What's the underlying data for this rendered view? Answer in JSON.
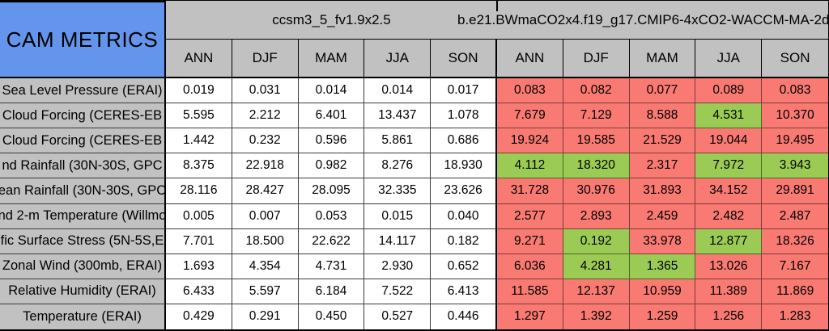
{
  "chart_data": {
    "type": "table",
    "title": "CAM METRICS",
    "models": [
      "ccsm3_5_fv1.9x2.5",
      "b.e21.BWmaCO2x4.f19_g17.CMIP6-4xCO2-WACCM-MA-2d"
    ],
    "seasons": [
      "ANN",
      "DJF",
      "MAM",
      "JJA",
      "SON"
    ],
    "highlight_legend": {
      "worse": "red cell",
      "better": "green cell"
    },
    "rows": [
      {
        "label": "Sea Level Pressure (ERAI)",
        "model1_values": [
          "0.019",
          "0.031",
          "0.014",
          "0.014",
          "0.017"
        ],
        "model2_values": [
          "0.083",
          "0.082",
          "0.077",
          "0.089",
          "0.083"
        ],
        "model2_flags": [
          "worse",
          "worse",
          "worse",
          "worse",
          "worse"
        ]
      },
      {
        "label": "Cloud Forcing (CERES-EB",
        "model1_values": [
          "5.595",
          "2.212",
          "6.401",
          "13.437",
          "1.078"
        ],
        "model2_values": [
          "7.679",
          "7.129",
          "8.588",
          "4.531",
          "10.370"
        ],
        "model2_flags": [
          "worse",
          "worse",
          "worse",
          "better",
          "worse"
        ]
      },
      {
        "label": "Cloud Forcing (CERES-EB",
        "model1_values": [
          "1.442",
          "0.232",
          "0.596",
          "5.861",
          "0.686"
        ],
        "model2_values": [
          "19.924",
          "19.585",
          "21.529",
          "19.044",
          "19.495"
        ],
        "model2_flags": [
          "worse",
          "worse",
          "worse",
          "worse",
          "worse"
        ]
      },
      {
        "label": "nd Rainfall (30N-30S, GPC",
        "model1_values": [
          "8.375",
          "22.918",
          "0.982",
          "8.276",
          "18.930"
        ],
        "model2_values": [
          "4.112",
          "18.320",
          "2.317",
          "7.972",
          "3.943"
        ],
        "model2_flags": [
          "better",
          "better",
          "worse",
          "better",
          "better"
        ]
      },
      {
        "label": "ean Rainfall (30N-30S, GPC",
        "model1_values": [
          "28.116",
          "28.427",
          "28.095",
          "32.335",
          "23.626"
        ],
        "model2_values": [
          "31.728",
          "30.976",
          "31.893",
          "34.152",
          "29.891"
        ],
        "model2_flags": [
          "worse",
          "worse",
          "worse",
          "worse",
          "worse"
        ]
      },
      {
        "label": "nd 2-m Temperature (Willmo",
        "model1_values": [
          "0.005",
          "0.007",
          "0.053",
          "0.015",
          "0.040"
        ],
        "model2_values": [
          "2.577",
          "2.893",
          "2.459",
          "2.482",
          "2.487"
        ],
        "model2_flags": [
          "worse",
          "worse",
          "worse",
          "worse",
          "worse"
        ]
      },
      {
        "label": "fic Surface Stress (5N-5S,E",
        "model1_values": [
          "7.701",
          "18.500",
          "22.622",
          "14.117",
          "0.182"
        ],
        "model2_values": [
          "9.271",
          "0.192",
          "33.978",
          "12.877",
          "18.326"
        ],
        "model2_flags": [
          "worse",
          "better",
          "worse",
          "better",
          "worse"
        ]
      },
      {
        "label": "Zonal Wind (300mb, ERAI)",
        "model1_values": [
          "1.693",
          "4.354",
          "4.731",
          "2.930",
          "0.652"
        ],
        "model2_values": [
          "6.036",
          "4.281",
          "1.365",
          "13.026",
          "7.167"
        ],
        "model2_flags": [
          "worse",
          "better",
          "better",
          "worse",
          "worse"
        ]
      },
      {
        "label": "Relative Humidity (ERAI)",
        "model1_values": [
          "6.433",
          "5.597",
          "6.184",
          "7.522",
          "6.413"
        ],
        "model2_values": [
          "11.585",
          "12.137",
          "10.959",
          "11.389",
          "11.869"
        ],
        "model2_flags": [
          "worse",
          "worse",
          "worse",
          "worse",
          "worse"
        ]
      },
      {
        "label": "Temperature (ERAI)",
        "model1_values": [
          "0.429",
          "0.291",
          "0.450",
          "0.527",
          "0.446"
        ],
        "model2_values": [
          "1.297",
          "1.392",
          "1.259",
          "1.256",
          "1.283"
        ],
        "model2_flags": [
          "worse",
          "worse",
          "worse",
          "worse",
          "worse"
        ]
      }
    ]
  },
  "colors": {
    "title_cell_blue": "#6495EC",
    "header_gray": "#C1C1C1",
    "worse_bg": "#F87A72",
    "better_bg": "#9CCB55",
    "cell_white": "#FFFFFF",
    "grid_line": "#3B3B3B",
    "heavy_line": "#000000"
  }
}
